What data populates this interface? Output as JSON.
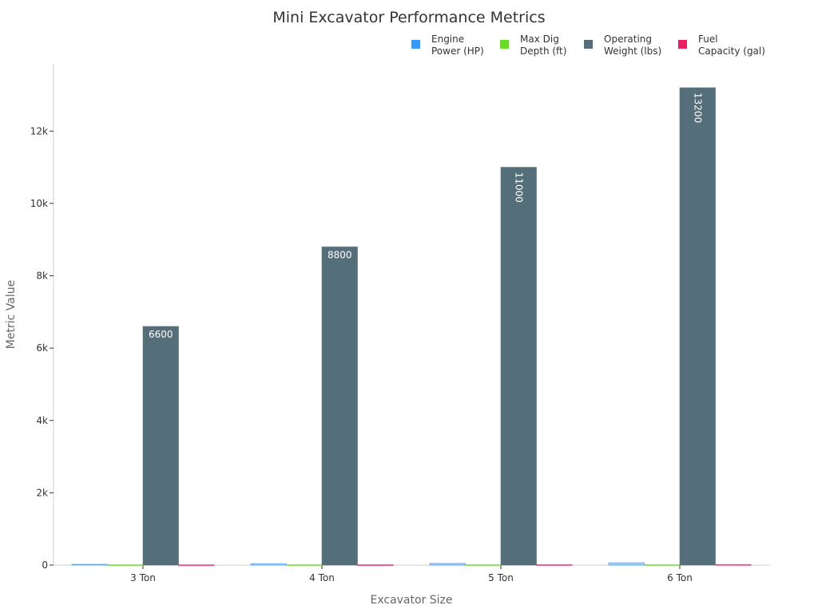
{
  "chart_data": {
    "type": "bar",
    "title": "Mini Excavator Performance Metrics",
    "xlabel": "Excavator Size",
    "ylabel": "Metric Value",
    "categories": [
      "3 Ton",
      "4 Ton",
      "5 Ton",
      "6 Ton"
    ],
    "series": [
      {
        "name": "Engine Power (HP)",
        "color": "#3399ff",
        "values": [
          24,
          40,
          48,
          65
        ]
      },
      {
        "name": "Max Dig Depth (ft)",
        "color": "#66dd22",
        "values": [
          9,
          10,
          11,
          12
        ]
      },
      {
        "name": "Operating Weight (lbs)",
        "color": "#546e7a",
        "values": [
          6600,
          8800,
          11000,
          13200
        ],
        "data_labels": [
          "6600",
          "8800",
          "11000",
          "13200"
        ]
      },
      {
        "name": "Fuel Capacity (gal)",
        "color": "#e91e63",
        "values": [
          7,
          10,
          13,
          16
        ]
      }
    ],
    "legend_labels": [
      [
        "Engine",
        "Power (HP)"
      ],
      [
        "Max Dig",
        "Depth (ft)"
      ],
      [
        "Operating",
        "Weight (lbs)"
      ],
      [
        "Fuel",
        "Capacity (gal)"
      ]
    ],
    "yticks": [
      "0",
      "2k",
      "4k",
      "6k",
      "8k",
      "10k",
      "12k"
    ],
    "ytick_values": [
      0,
      2000,
      4000,
      6000,
      8000,
      10000,
      12000
    ],
    "ylim": [
      0,
      13860
    ],
    "grid": false,
    "legend_position": "top-right"
  }
}
